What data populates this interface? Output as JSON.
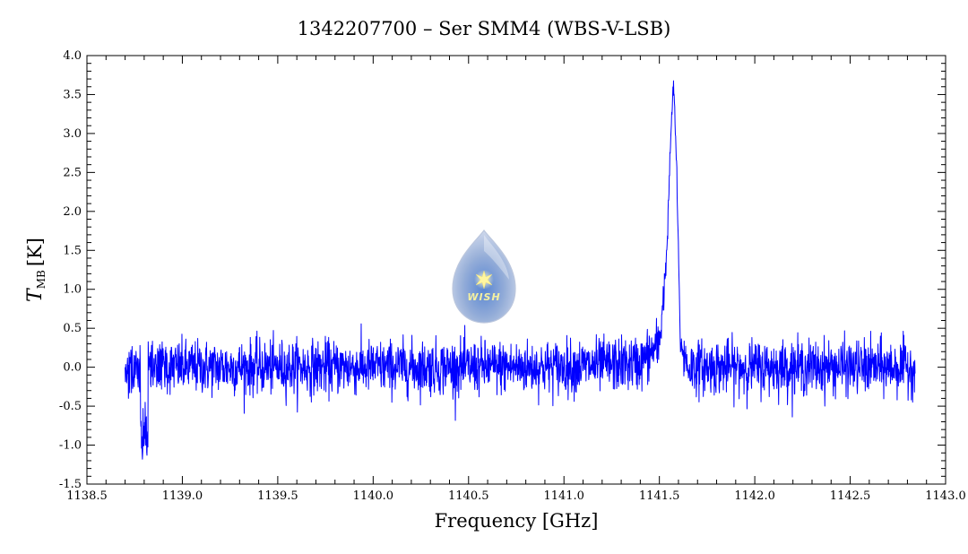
{
  "chart_data": {
    "type": "line",
    "title": "1342207700 – Ser SMM4 (WBS-V-LSB)",
    "xlabel": "Frequency [GHz]",
    "ylabel_symbol": "T",
    "ylabel_subscript": "MB",
    "ylabel_unit": "[K]",
    "xlim": [
      1138.5,
      1143.0
    ],
    "ylim": [
      -1.5,
      4.0
    ],
    "x_ticks": [
      "1138.5",
      "1139.0",
      "1139.5",
      "1140.0",
      "1140.5",
      "1141.0",
      "1141.5",
      "1142.0",
      "1142.5",
      "1143.0"
    ],
    "y_ticks": [
      "-1.5",
      "-1.0",
      "-0.5",
      "0.0",
      "0.5",
      "1.0",
      "1.5",
      "2.0",
      "2.5",
      "3.0",
      "3.5",
      "4.0"
    ],
    "grid": false,
    "series": [
      {
        "color": "#0000ff",
        "x_range": [
          1138.7,
          1142.84
        ],
        "noise_rms_K": 0.17,
        "line_center_GHz": 1141.575,
        "line_peak_K": 3.65,
        "x": [
          1138.7,
          1138.8,
          1139.0,
          1139.5,
          1140.0,
          1140.5,
          1141.0,
          1141.4,
          1141.5,
          1141.54,
          1141.56,
          1141.575,
          1141.59,
          1141.61,
          1141.65,
          1142.0,
          1142.5,
          1142.84
        ],
        "y": [
          0.0,
          -0.9,
          0.0,
          0.0,
          0.0,
          0.0,
          0.0,
          0.05,
          0.3,
          1.5,
          3.0,
          3.65,
          2.6,
          0.3,
          0.0,
          0.0,
          0.0,
          0.0
        ]
      }
    ]
  },
  "logo": {
    "text": "WISH",
    "color": "#8aa8d8"
  }
}
